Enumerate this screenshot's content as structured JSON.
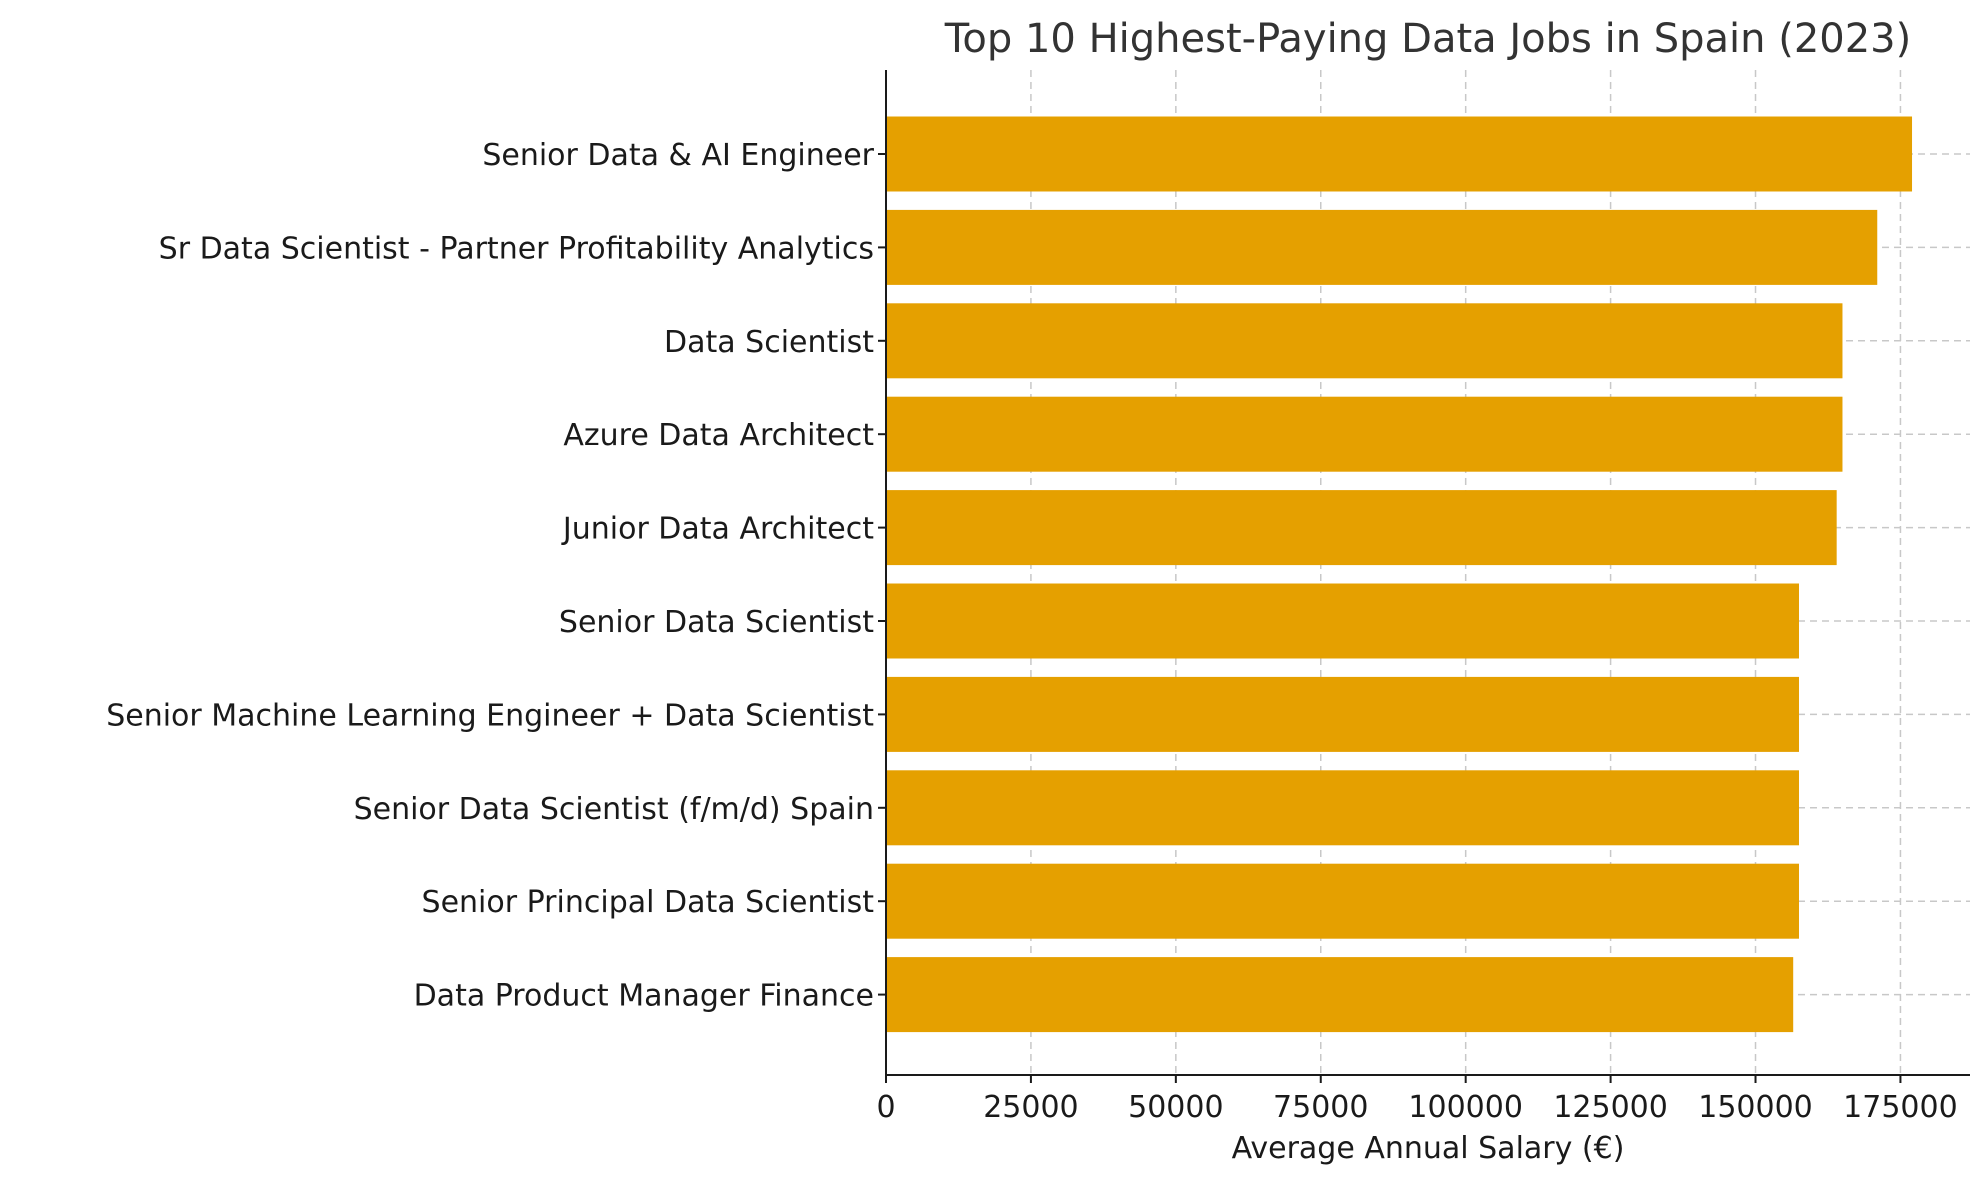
{
  "chart_data": {
    "type": "bar",
    "orientation": "horizontal",
    "title": "Top 10 Highest-Paying Data Jobs in Spain (2023)",
    "xlabel": "Average Annual Salary (€)",
    "ylabel": "",
    "xlim": [
      0,
      187000
    ],
    "xticks": [
      0,
      25000,
      50000,
      75000,
      100000,
      125000,
      150000,
      175000
    ],
    "xtick_labels": [
      "0",
      "25000",
      "50000",
      "75000",
      "100000",
      "125000",
      "150000",
      "175000"
    ],
    "grid": true,
    "bar_color": "#E5A000",
    "categories": [
      "Senior Data & AI Engineer",
      "Sr Data Scientist - Partner Profitability Analytics",
      "Data Scientist",
      "Azure Data Architect",
      "Junior Data Architect",
      "Senior Data Scientist",
      "Senior Machine Learning Engineer + Data Scientist",
      "Senior Data Scientist (f/m/d) Spain",
      "Senior Principal Data Scientist",
      "Data Product Manager Finance"
    ],
    "values": [
      177000,
      171000,
      165000,
      165000,
      164000,
      157500,
      157500,
      157500,
      157500,
      156500
    ]
  }
}
